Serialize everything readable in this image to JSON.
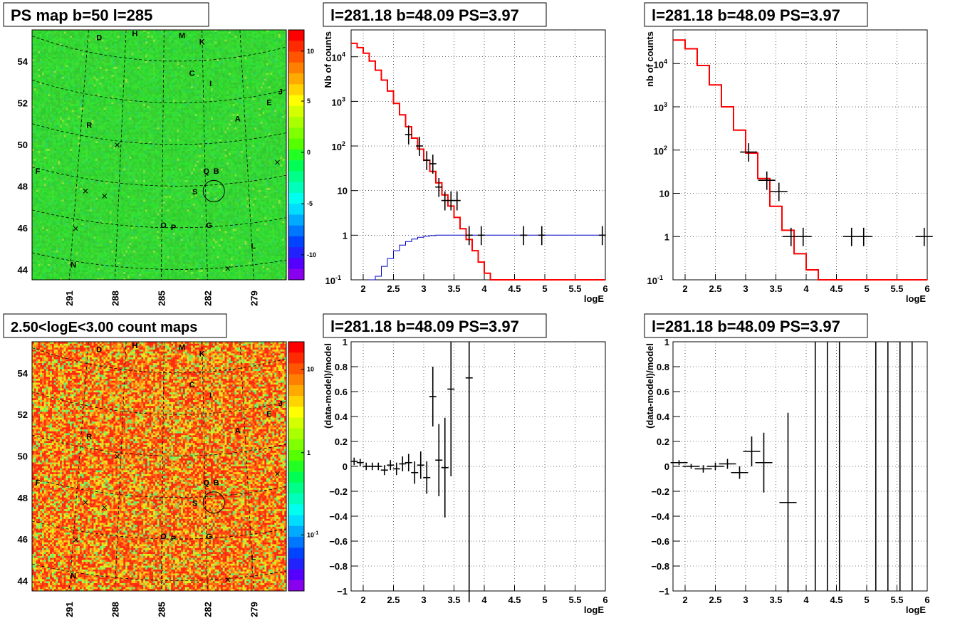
{
  "colors": {
    "map_bg": "#33dd33",
    "count_bg": "#f0a020",
    "model_line": "#ff0000",
    "unit_line": "#0000cc",
    "data": "#000000"
  },
  "chart_data": [
    {
      "type": "heatmap",
      "title": "PS map b=50 l=285",
      "x_ticks": [
        "291",
        "288",
        "285",
        "282",
        "279"
      ],
      "y_ticks": [
        "54",
        "52",
        "50",
        "48",
        "46",
        "44"
      ],
      "colorbar_ticks": [
        "10",
        "5",
        "0",
        "-5",
        "-10"
      ],
      "sources": [
        {
          "label": "D",
          "lon": 289.5,
          "lat": 55.2
        },
        {
          "label": "H",
          "lon": 287.0,
          "lat": 55.4
        },
        {
          "label": "M",
          "lon": 283.7,
          "lat": 55.3
        },
        {
          "label": "K",
          "lon": 282.3,
          "lat": 55.0
        },
        {
          "label": "C",
          "lon": 283.0,
          "lat": 53.5
        },
        {
          "label": "I",
          "lon": 281.7,
          "lat": 53.0
        },
        {
          "label": "J",
          "lon": 276.8,
          "lat": 52.6
        },
        {
          "label": "E",
          "lon": 277.6,
          "lat": 52.1
        },
        {
          "label": "A",
          "lon": 279.8,
          "lat": 51.3
        },
        {
          "label": "R",
          "lon": 290.2,
          "lat": 51.0
        },
        {
          "label": "F",
          "lon": 293.8,
          "lat": 48.8
        },
        {
          "label": "Q",
          "lon": 282.0,
          "lat": 48.8
        },
        {
          "label": "B",
          "lon": 281.3,
          "lat": 48.8
        },
        {
          "label": "S",
          "lon": 282.8,
          "lat": 47.8
        },
        {
          "label": "O",
          "lon": 285.0,
          "lat": 46.2
        },
        {
          "label": "P",
          "lon": 284.3,
          "lat": 46.1
        },
        {
          "label": "G",
          "lon": 281.8,
          "lat": 46.2
        },
        {
          "label": "L",
          "lon": 278.7,
          "lat": 45.2
        },
        {
          "label": "N",
          "lon": 291.3,
          "lat": 44.3
        }
      ]
    },
    {
      "type": "line",
      "title": "l=281.18 b=48.09 PS=3.97",
      "xlabel": "logE",
      "ylabel": "Nb of counts",
      "xlim": [
        1.8,
        6
      ],
      "ylim": [
        0.1,
        40000
      ],
      "yscale": "log",
      "x_ticks": [
        "2",
        "2.5",
        "3",
        "3.5",
        "4",
        "4.5",
        "5",
        "5.5",
        "6"
      ],
      "y_ticks": [
        "10^4",
        "10^3",
        "10^2",
        "10",
        "1",
        "10^-1"
      ],
      "series": [
        {
          "values": [
            [
              1.8,
              20000
            ],
            [
              1.9,
              16000
            ],
            [
              2.0,
              12000
            ],
            [
              2.1,
              8000
            ],
            [
              2.2,
              5000
            ],
            [
              2.3,
              3000
            ],
            [
              2.4,
              1700
            ],
            [
              2.5,
              900
            ],
            [
              2.6,
              500
            ],
            [
              2.7,
              270
            ],
            [
              2.8,
              150
            ],
            [
              2.9,
              85
            ],
            [
              3.0,
              48
            ],
            [
              3.1,
              27
            ],
            [
              3.2,
              15
            ],
            [
              3.3,
              8
            ],
            [
              3.4,
              4.5
            ],
            [
              3.5,
              2.5
            ],
            [
              3.6,
              1.4
            ],
            [
              3.7,
              0.8
            ],
            [
              3.8,
              0.45
            ],
            [
              3.9,
              0.25
            ],
            [
              4.0,
              0.14
            ],
            [
              4.1,
              0.1
            ],
            [
              6.0,
              0.1
            ]
          ]
        },
        {
          "values": [
            [
              2.1,
              0.1
            ],
            [
              2.2,
              0.12
            ],
            [
              2.3,
              0.2
            ],
            [
              2.4,
              0.3
            ],
            [
              2.5,
              0.45
            ],
            [
              2.6,
              0.6
            ],
            [
              2.7,
              0.72
            ],
            [
              2.8,
              0.82
            ],
            [
              2.9,
              0.9
            ],
            [
              3.0,
              0.95
            ],
            [
              3.1,
              0.98
            ],
            [
              3.2,
              1
            ],
            [
              6.0,
              1
            ]
          ]
        },
        {
          "values": [
            [
              2.75,
              180
            ],
            [
              2.93,
              100
            ],
            [
              3.05,
              48
            ],
            [
              3.15,
              40
            ],
            [
              3.25,
              12
            ],
            [
              3.35,
              6
            ],
            [
              3.45,
              6
            ],
            [
              3.55,
              6
            ],
            [
              3.75,
              1
            ],
            [
              3.95,
              1
            ],
            [
              4.65,
              1
            ],
            [
              4.95,
              1
            ],
            [
              5.95,
              1
            ]
          ]
        }
      ]
    },
    {
      "type": "line",
      "title": "l=281.18 b=48.09 PS=3.97",
      "xlabel": "logE",
      "ylabel": "nb of counts",
      "xlim": [
        1.8,
        6
      ],
      "ylim": [
        0.1,
        60000
      ],
      "yscale": "log",
      "x_ticks": [
        "2",
        "2.5",
        "3",
        "3.5",
        "4",
        "4.5",
        "5",
        "5.5",
        "6"
      ],
      "y_ticks": [
        "10^4",
        "10^3",
        "10^2",
        "10",
        "1",
        "10^-1"
      ],
      "series": [
        {
          "values": [
            [
              1.8,
              35000
            ],
            [
              2.0,
              22000
            ],
            [
              2.2,
              9000
            ],
            [
              2.4,
              3200
            ],
            [
              2.6,
              1000
            ],
            [
              2.8,
              290
            ],
            [
              3.0,
              85
            ],
            [
              3.2,
              22
            ],
            [
              3.4,
              5
            ],
            [
              3.6,
              1.4
            ],
            [
              3.8,
              0.4
            ],
            [
              4.0,
              0.17
            ],
            [
              4.2,
              0.1
            ],
            [
              6.0,
              0.1
            ]
          ]
        },
        {
          "values": [
            [
              3.05,
              90
            ],
            [
              3.35,
              20
            ],
            [
              3.55,
              11
            ],
            [
              3.75,
              1
            ],
            [
              3.95,
              1
            ],
            [
              4.75,
              1
            ],
            [
              4.95,
              1
            ],
            [
              5.95,
              1
            ]
          ]
        }
      ]
    },
    {
      "type": "heatmap",
      "title": "2.50<logE<3.00 count maps",
      "x_ticks": [
        "291",
        "288",
        "285",
        "282",
        "279"
      ],
      "y_ticks": [
        "54",
        "52",
        "50",
        "48",
        "46",
        "44"
      ],
      "colorbar_ticks": [
        "10",
        "1",
        "10^-1"
      ]
    },
    {
      "type": "scatter",
      "title": "l=281.18 b=48.09 PS=3.97",
      "xlabel": "logE",
      "ylabel": "(data-model)/model",
      "xlim": [
        1.8,
        6
      ],
      "ylim": [
        -1,
        1
      ],
      "x_ticks": [
        "2",
        "2.5",
        "3",
        "3.5",
        "4",
        "4.5",
        "5",
        "5.5",
        "6"
      ],
      "y_ticks": [
        "1",
        "0.8",
        "0.6",
        "0.4",
        "0.2",
        "0",
        "-0.2",
        "-0.4",
        "-0.6",
        "-0.8",
        "-1"
      ],
      "values": [
        [
          1.85,
          0.04
        ],
        [
          1.95,
          0.03
        ],
        [
          2.05,
          0.0
        ],
        [
          2.15,
          0.0
        ],
        [
          2.25,
          0.0
        ],
        [
          2.35,
          -0.03
        ],
        [
          2.45,
          0.01
        ],
        [
          2.55,
          -0.02
        ],
        [
          2.65,
          0.02
        ],
        [
          2.75,
          0.03
        ],
        [
          2.85,
          -0.05
        ],
        [
          2.95,
          0.01
        ],
        [
          3.05,
          -0.09
        ],
        [
          3.15,
          0.56
        ],
        [
          3.25,
          0.05
        ],
        [
          3.35,
          -0.01
        ],
        [
          3.45,
          0.62
        ],
        [
          3.75,
          0.71
        ]
      ]
    },
    {
      "type": "scatter",
      "title": "l=281.18 b=48.09 PS=3.97",
      "xlabel": "logE",
      "ylabel": "(data-model)/model",
      "xlim": [
        1.8,
        6
      ],
      "ylim": [
        -1,
        1
      ],
      "x_ticks": [
        "2",
        "2.5",
        "3",
        "3.5",
        "4",
        "4.5",
        "5",
        "5.5",
        "6"
      ],
      "y_ticks": [
        "1",
        "0.8",
        "0.6",
        "0.4",
        "0.2",
        "0",
        "-0.2",
        "-0.4",
        "-0.6",
        "-0.8",
        "-1"
      ],
      "values": [
        [
          1.9,
          0.03
        ],
        [
          2.1,
          0.0
        ],
        [
          2.3,
          -0.02
        ],
        [
          2.5,
          0.0
        ],
        [
          2.7,
          0.02
        ],
        [
          2.9,
          -0.05
        ],
        [
          3.1,
          0.12
        ],
        [
          3.3,
          0.03
        ],
        [
          3.7,
          -0.29
        ]
      ]
    }
  ]
}
